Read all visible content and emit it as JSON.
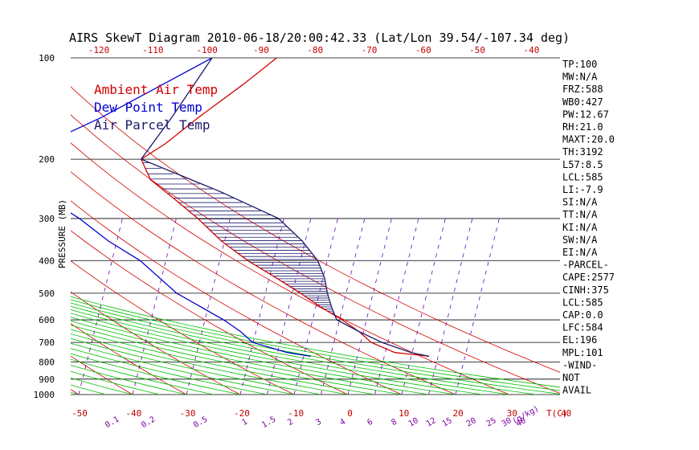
{
  "title": "AIRS SkewT Diagram 2010-06-18/20:00:42.33 (Lat/Lon 39.54/-107.34 deg)",
  "colors": {
    "temp": "#d40000",
    "dew": "#0000d0",
    "parcel": "#1a1a6a",
    "dry_adiabat": "#d40000",
    "moist_adiabat": "#00c000",
    "mixing": "#6a00b0",
    "hatch": "#1a1a6a"
  },
  "chart_data": {
    "type": "line",
    "title": "AIRS SkewT Diagram 2010-06-18/20:00:42.33 (Lat/Lon 39.54/-107.34 deg)",
    "ylabel": "PRESSURE (MB)",
    "xlabel": "T(C)",
    "mixing_unit": "(g/kg)",
    "pressure_ticks": [
      100,
      200,
      300,
      400,
      500,
      600,
      700,
      800,
      900,
      1000
    ],
    "bottom_temp_ticks": [
      -50,
      -40,
      -30,
      -20,
      -10,
      0,
      10,
      20,
      30,
      40
    ],
    "top_temp_ticks": [
      -120,
      -110,
      -100,
      -90,
      -80,
      -70,
      -60,
      -50,
      -40
    ],
    "mixing_ratio_labels": [
      "0.1",
      "0.2",
      "0.5",
      "1",
      "1.5",
      "2",
      "3",
      "4",
      "6",
      "8",
      "10",
      "12",
      "15",
      "20",
      "25",
      "30",
      "40"
    ],
    "legend": [
      "Ambient Air Temp",
      "Dew Point Temp",
      "Air Parcel Temp"
    ],
    "series": [
      {
        "name": "Ambient Air Temp",
        "points": [
          [
            100,
            -57
          ],
          [
            120,
            -59
          ],
          [
            150,
            -62
          ],
          [
            180,
            -64
          ],
          [
            200,
            -66
          ],
          [
            230,
            -61
          ],
          [
            260,
            -54
          ],
          [
            300,
            -46
          ],
          [
            350,
            -38
          ],
          [
            400,
            -30
          ],
          [
            450,
            -22
          ],
          [
            500,
            -15
          ],
          [
            550,
            -9
          ],
          [
            600,
            -3
          ],
          [
            650,
            2
          ],
          [
            700,
            6
          ],
          [
            750,
            12
          ],
          [
            770,
            19
          ]
        ]
      },
      {
        "name": "Dew Point Temp",
        "points": [
          [
            100,
            -69
          ],
          [
            150,
            -80
          ],
          [
            200,
            -90
          ],
          [
            250,
            -80
          ],
          [
            300,
            -68
          ],
          [
            350,
            -59
          ],
          [
            400,
            -50
          ],
          [
            500,
            -38
          ],
          [
            600,
            -25
          ],
          [
            650,
            -20
          ],
          [
            700,
            -16
          ],
          [
            750,
            -8
          ],
          [
            770,
            -3
          ]
        ]
      },
      {
        "name": "Air Parcel Temp",
        "points": [
          [
            100,
            -69
          ],
          [
            150,
            -67
          ],
          [
            200,
            -66
          ],
          [
            250,
            -46
          ],
          [
            300,
            -31
          ],
          [
            350,
            -23
          ],
          [
            400,
            -17
          ],
          [
            450,
            -13
          ],
          [
            500,
            -10
          ],
          [
            550,
            -7
          ],
          [
            600,
            -4
          ],
          [
            650,
            2
          ],
          [
            700,
            8
          ],
          [
            750,
            15
          ],
          [
            770,
            19
          ]
        ]
      }
    ]
  },
  "indices": [
    "TP:100",
    "MW:N/A",
    "FRZ:588",
    "WB0:427",
    "PW:12.67",
    "RH:21.0",
    "MAXT:20.0",
    "TH:3192",
    "L57:8.5",
    "LCL:585",
    "LI:-7.9",
    "SI:N/A",
    "TT:N/A",
    "KI:N/A",
    "SW:N/A",
    "EI:N/A",
    "-PARCEL-",
    "CAPE:2577",
    "CINH:375",
    "LCL:585",
    "CAP:0.0",
    "LFC:584",
    "EL:196",
    "MPL:101",
    "-WIND-",
    "NOT",
    "AVAIL"
  ]
}
